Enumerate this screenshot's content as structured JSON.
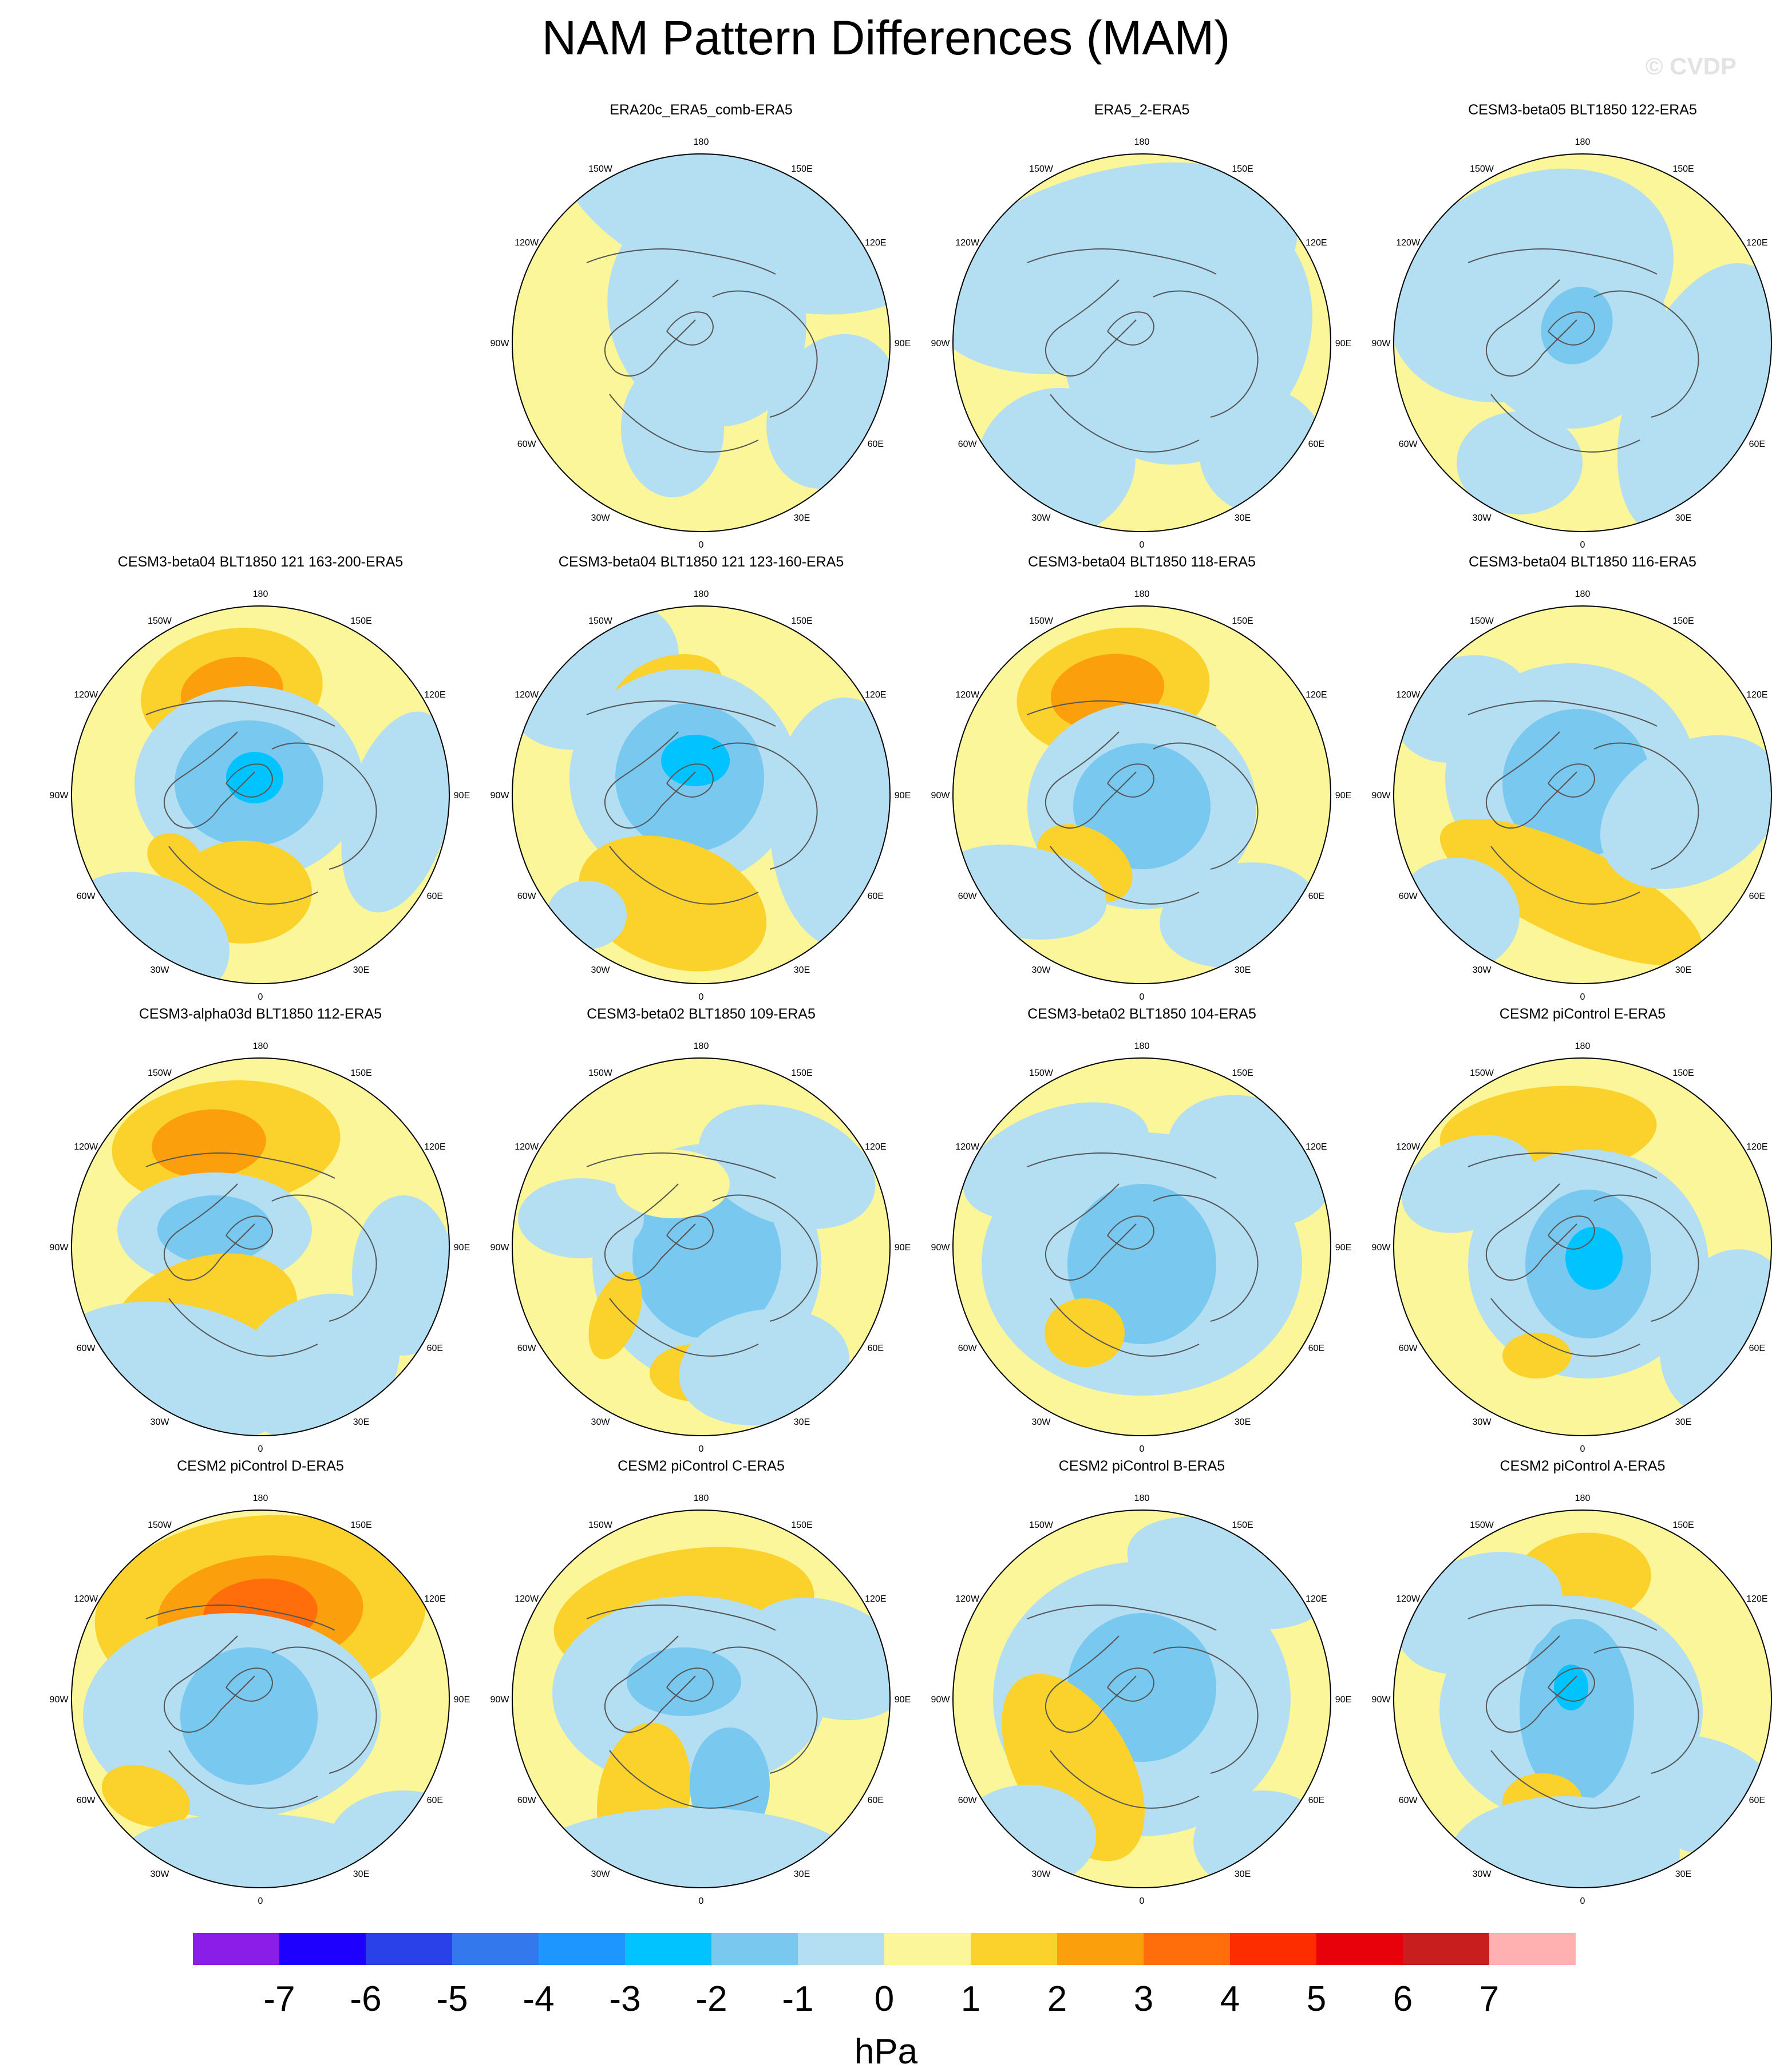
{
  "title": "NAM Pattern Differences (MAM)",
  "watermark": "© CVDP",
  "longitude_labels": [
    "180",
    "150E",
    "120E",
    "90E",
    "60E",
    "30E",
    "0",
    "30W",
    "60W",
    "90W",
    "120W",
    "150W"
  ],
  "panels": [
    {
      "title": "ERA20c_ERA5_comb-ERA5",
      "pattern": 1
    },
    {
      "title": "ERA5_2-ERA5",
      "pattern": 2
    },
    {
      "title": "CESM3-beta05 BLT1850 122-ERA5",
      "pattern": 3
    },
    {
      "title": "CESM3-beta04 BLT1850 121 163-200-ERA5",
      "pattern": 4
    },
    {
      "title": "CESM3-beta04 BLT1850 121 123-160-ERA5",
      "pattern": 5
    },
    {
      "title": "CESM3-beta04 BLT1850 118-ERA5",
      "pattern": 6
    },
    {
      "title": "CESM3-beta04 BLT1850 116-ERA5",
      "pattern": 7
    },
    {
      "title": "CESM3-alpha03d BLT1850 112-ERA5",
      "pattern": 8
    },
    {
      "title": "CESM3-beta02 BLT1850 109-ERA5",
      "pattern": 9
    },
    {
      "title": "CESM3-beta02 BLT1850 104-ERA5",
      "pattern": 10
    },
    {
      "title": "CESM2 piControl E-ERA5",
      "pattern": 11
    },
    {
      "title": "CESM2 piControl D-ERA5",
      "pattern": 12
    },
    {
      "title": "CESM2 piControl C-ERA5",
      "pattern": 13
    },
    {
      "title": "CESM2 piControl B-ERA5",
      "pattern": 14
    },
    {
      "title": "CESM2 piControl A-ERA5",
      "pattern": 15
    }
  ],
  "colorbar": {
    "units": "hPa",
    "ticks": [
      "-7",
      "-6",
      "-5",
      "-4",
      "-3",
      "-2",
      "-1",
      "0",
      "1",
      "2",
      "3",
      "4",
      "5",
      "6",
      "7"
    ],
    "colors": [
      "#8a1ee8",
      "#1e00ff",
      "#2a40e8",
      "#3478ee",
      "#1e96ff",
      "#00c3ff",
      "#78c8f0",
      "#b4def2",
      "#fbf69a",
      "#fbd22c",
      "#fba00c",
      "#ff6e0a",
      "#fe2d00",
      "#e8000a",
      "#c81e1e",
      "#ffb0b0"
    ]
  }
}
